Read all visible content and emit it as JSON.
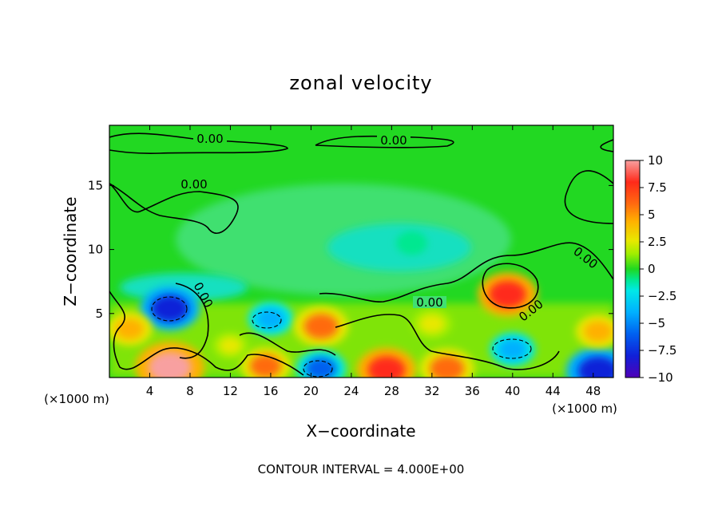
{
  "chart_data": {
    "type": "heatmap",
    "title": "zonal velocity",
    "xlabel": "X−coordinate",
    "ylabel": "Z−coordinate",
    "x_unit_left": "(×1000 m)",
    "x_unit_right": "(×1000 m)",
    "footer": "CONTOUR INTERVAL = 4.000E+00",
    "xlim": [
      0,
      50
    ],
    "ylim": [
      0,
      19.7
    ],
    "x_ticks": [
      4,
      8,
      12,
      16,
      20,
      24,
      28,
      32,
      36,
      40,
      44,
      48
    ],
    "y_ticks": [
      5,
      10,
      15
    ],
    "contour_level_label": "0.00",
    "colorbar": {
      "range": [
        -10,
        10
      ],
      "ticks": [
        "10",
        "7.5",
        "5",
        "2.5",
        "0",
        "−2.5",
        "−5",
        "−7.5",
        "−10"
      ],
      "colors": [
        "#f8a0a0",
        "#ff2a1a",
        "#ff6a10",
        "#ffb000",
        "#e8e800",
        "#a0ee00",
        "#20d820",
        "#00e890",
        "#00e8e8",
        "#00b0ff",
        "#0060f0",
        "#1020d8",
        "#5000b8"
      ]
    },
    "features": [
      {
        "x": 6.0,
        "z": 0.8,
        "value": 10
      },
      {
        "x": 6.0,
        "z": 5.4,
        "value": -8
      },
      {
        "x": 2.0,
        "z": 3.8,
        "value": 5
      },
      {
        "x": 15.5,
        "z": 0.9,
        "value": 6
      },
      {
        "x": 16.0,
        "z": 4.6,
        "value": -5
      },
      {
        "x": 21.0,
        "z": 4.0,
        "value": 7
      },
      {
        "x": 21.0,
        "z": 0.7,
        "value": -6
      },
      {
        "x": 27.5,
        "z": 0.6,
        "value": 8
      },
      {
        "x": 33.5,
        "z": 0.7,
        "value": 7
      },
      {
        "x": 39.5,
        "z": 6.5,
        "value": 8
      },
      {
        "x": 40.0,
        "z": 2.2,
        "value": -5
      },
      {
        "x": 48.5,
        "z": 0.5,
        "value": -9
      },
      {
        "x": 48.5,
        "z": 3.6,
        "value": 5
      },
      {
        "x": 32.0,
        "z": 4.2,
        "value": 4
      },
      {
        "x": 12.0,
        "z": 2.5,
        "value": 3
      },
      {
        "x": 30.0,
        "z": 10.5,
        "value": -2
      }
    ]
  }
}
